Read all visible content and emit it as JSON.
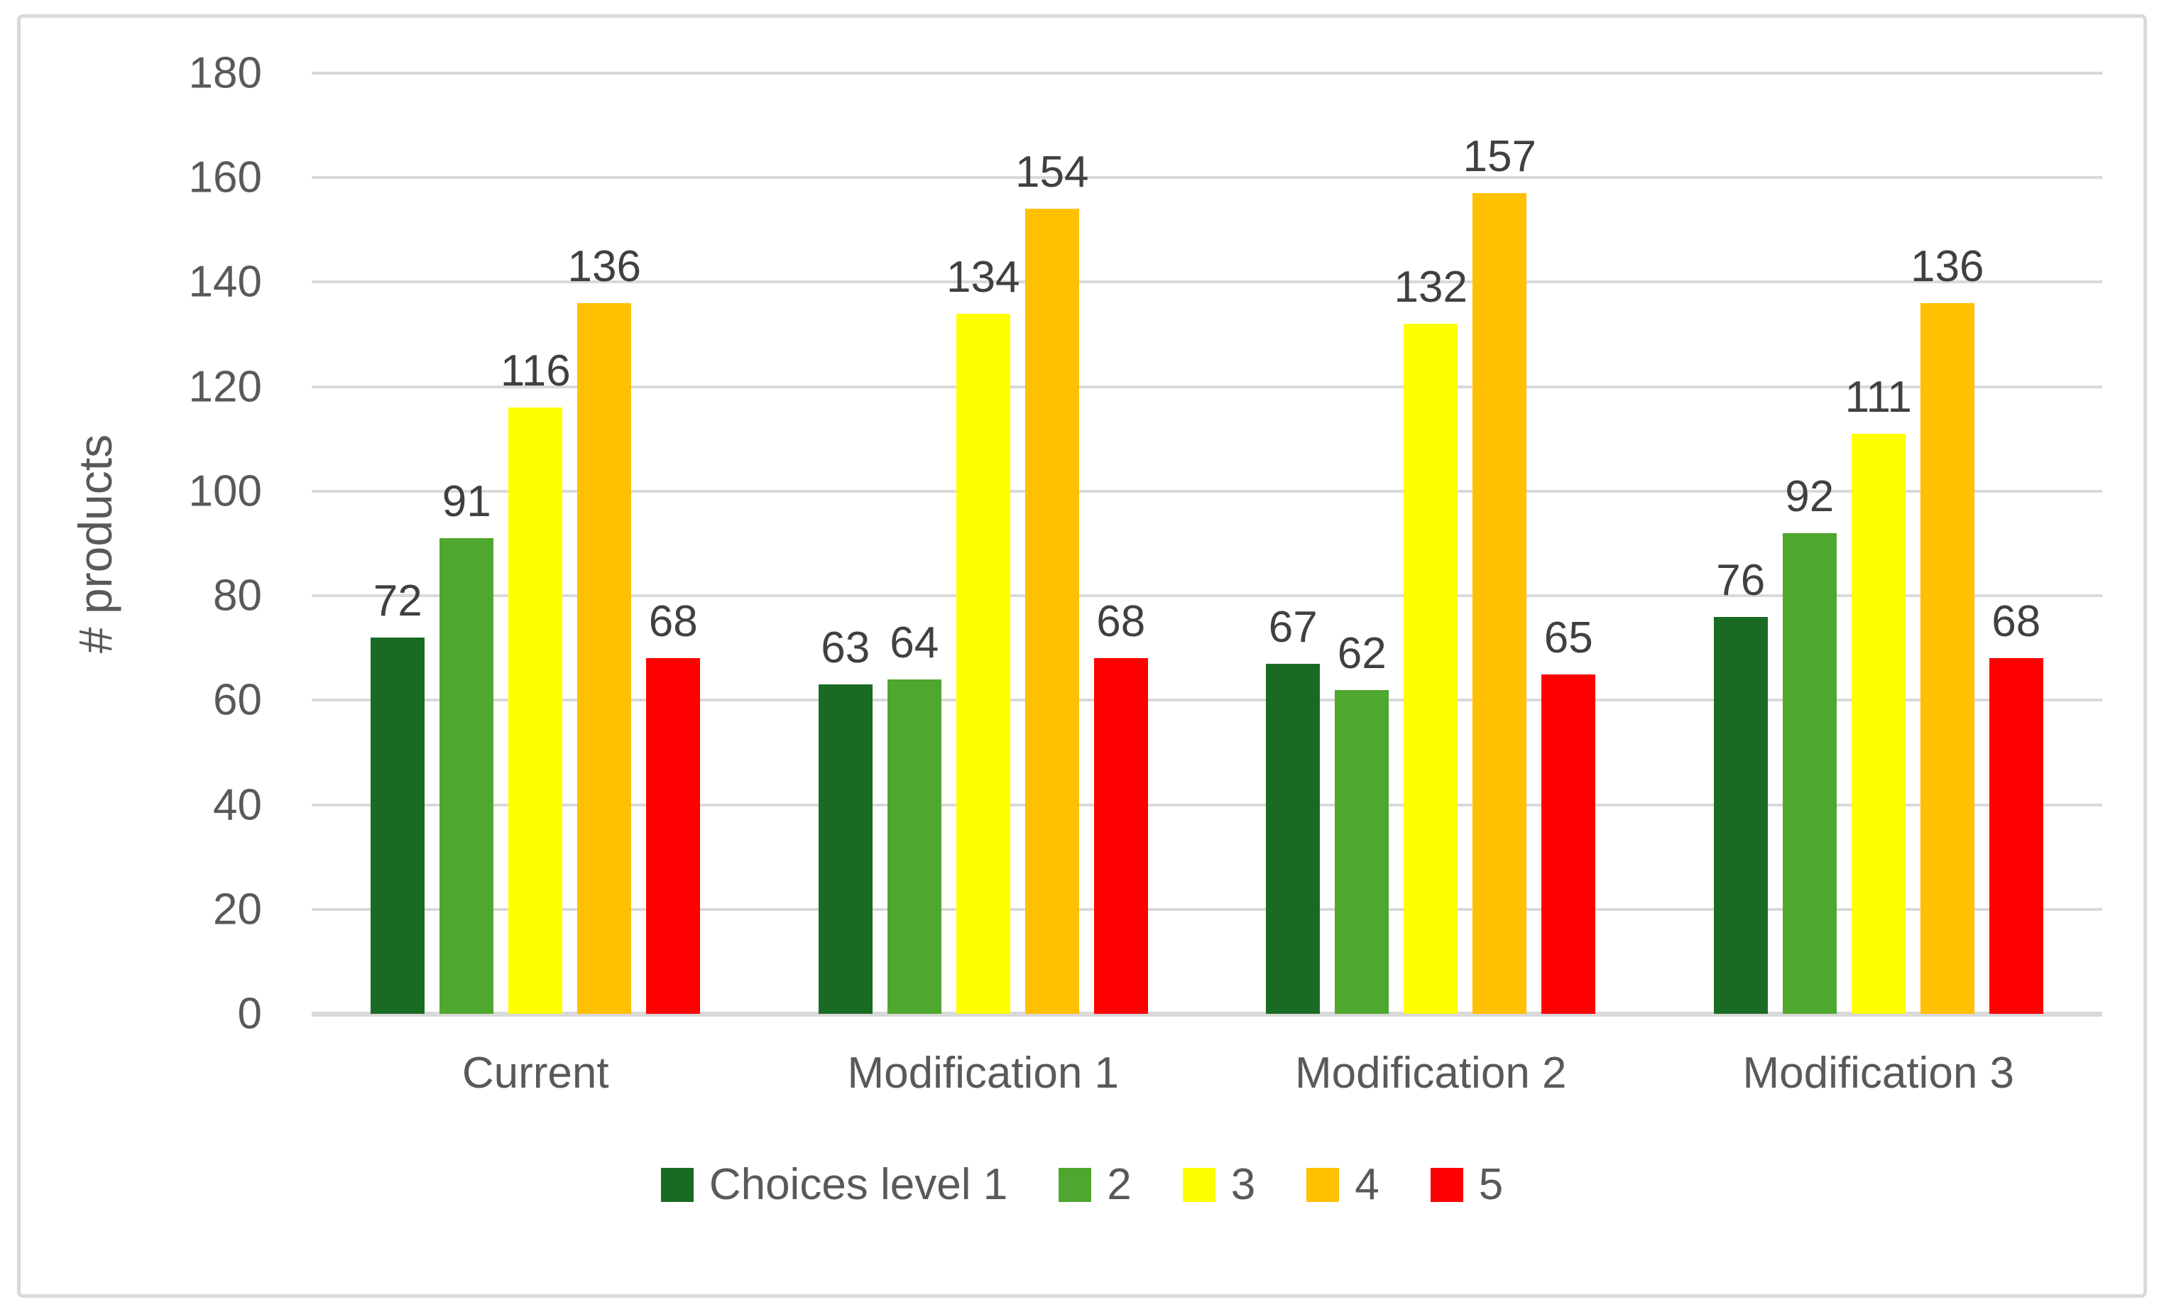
{
  "chart_data": {
    "type": "bar",
    "title": "",
    "ylabel": "# products",
    "xlabel": "",
    "categories": [
      "Current",
      "Modification 1",
      "Modification 2",
      "Modification 3"
    ],
    "series": [
      {
        "name": "Choices level 1",
        "color": "#196B24",
        "values": [
          72,
          63,
          67,
          76
        ]
      },
      {
        "name": "2",
        "color": "#4EA72E",
        "values": [
          91,
          64,
          62,
          92
        ]
      },
      {
        "name": "3",
        "color": "#FFFF00",
        "values": [
          116,
          134,
          132,
          111
        ]
      },
      {
        "name": "4",
        "color": "#FFC000",
        "values": [
          136,
          154,
          157,
          136
        ]
      },
      {
        "name": "5",
        "color": "#FF0000",
        "values": [
          68,
          68,
          65,
          68
        ]
      }
    ],
    "data_labels_shown": true,
    "ylim": [
      0,
      180
    ],
    "ytick_step": 20,
    "grid": true,
    "legend_position": "bottom",
    "grid_color": "#D9D9D9",
    "frame_border_color": "#D9D9D9",
    "axis_text_color": "#595959",
    "data_label_color": "#404040",
    "background_color": "#FFFFFF"
  }
}
